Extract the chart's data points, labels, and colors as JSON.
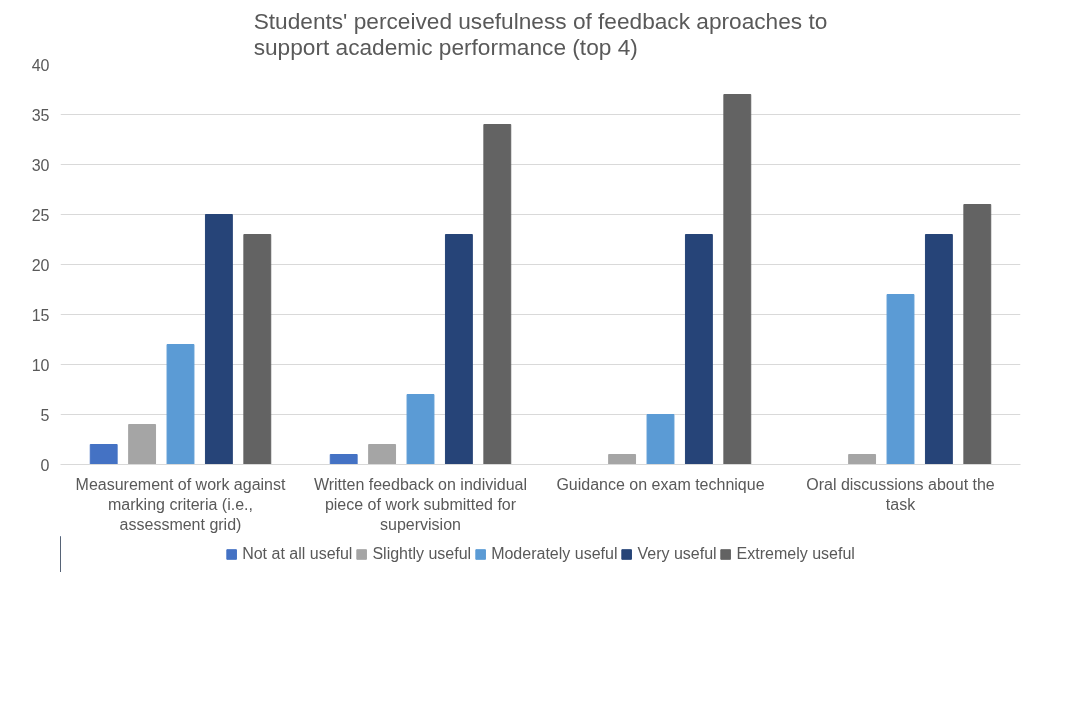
{
  "chart_data": {
    "type": "bar",
    "title": "Students' perceived usefulness of feedback aproaches to support academic performance (top 4)",
    "categories": [
      "Measurement of work against marking criteria (i.e., assessment grid)",
      "Written feedback on individual piece of work submitted for supervision",
      "Guidance on exam technique",
      "Oral discussions about the task"
    ],
    "series": [
      {
        "name": "Not at all useful",
        "color": "#4472c4",
        "values": [
          2,
          1,
          0,
          0
        ]
      },
      {
        "name": "Slightly useful",
        "color": "#a5a5a5",
        "values": [
          4,
          2,
          1,
          1
        ]
      },
      {
        "name": "Moderately useful",
        "color": "#5b9bd5",
        "values": [
          12,
          7,
          5,
          17
        ]
      },
      {
        "name": "Very useful",
        "color": "#264478",
        "values": [
          25,
          23,
          23,
          23
        ]
      },
      {
        "name": "Extremely useful",
        "color": "#636363",
        "values": [
          23,
          34,
          37,
          26
        ]
      }
    ],
    "ylim": [
      0,
      40
    ],
    "yticks": [
      0,
      5,
      10,
      15,
      20,
      25,
      30,
      35,
      40
    ],
    "grid": "y",
    "legend": "bottom"
  }
}
